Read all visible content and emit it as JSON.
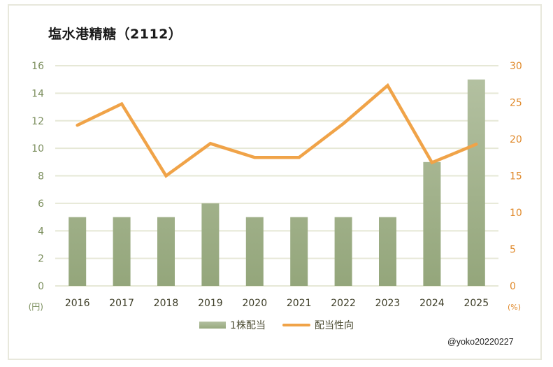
{
  "chart_data": {
    "type": "bar+line",
    "title": "塩水港精糖（2112）",
    "categories": [
      "2016",
      "2017",
      "2018",
      "2019",
      "2020",
      "2021",
      "2022",
      "2023",
      "2024",
      "2025"
    ],
    "series": [
      {
        "name": "1株配当",
        "type": "bar",
        "axis": "left",
        "color": "#a3b38c",
        "values": [
          5,
          5,
          5,
          6,
          5,
          5,
          5,
          5,
          9,
          15
        ]
      },
      {
        "name": "配当性向",
        "type": "line",
        "axis": "right",
        "color": "#f0a348",
        "values": [
          21.9,
          24.8,
          15.0,
          19.4,
          17.5,
          17.5,
          22.1,
          27.3,
          16.8,
          19.3
        ]
      }
    ],
    "left_axis": {
      "unit": "(円)",
      "min": 0,
      "max": 16,
      "step": 2,
      "ticks": [
        "0",
        "2",
        "4",
        "6",
        "8",
        "10",
        "12",
        "14",
        "16"
      ],
      "color": "#7c8f5e"
    },
    "right_axis": {
      "unit": "(%)",
      "min": 0,
      "max": 30,
      "step": 5,
      "ticks": [
        "0",
        "5",
        "10",
        "15",
        "20",
        "25",
        "30"
      ],
      "color": "#e08a2c"
    },
    "grid": true,
    "legend_position": "bottom"
  },
  "legend": {
    "bar_label": "1株配当",
    "line_label": "配当性向"
  },
  "credit": "@yoko20220227"
}
